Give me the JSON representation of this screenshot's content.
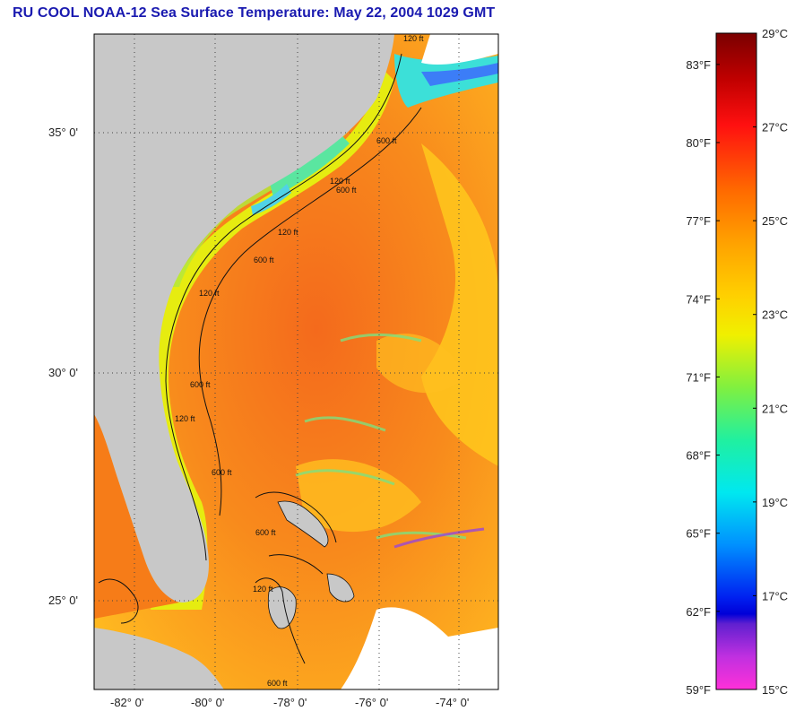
{
  "title": "RU COOL  NOAA-12  Sea Surface Temperature:  May 22, 2004 1029 GMT",
  "map": {
    "lat_labels": [
      "35° 0'",
      "30° 0'",
      "25° 0'"
    ],
    "lon_labels": [
      "-82° 0'",
      "-80° 0'",
      "-78° 0'",
      "-76° 0'",
      "-74° 0'"
    ],
    "isobath_labels": [
      "120 ft",
      "600 ft",
      "120 ft",
      "600 ft",
      "120 ft",
      "600 ft",
      "120 ft",
      "600 ft",
      "120 ft",
      "600 ft",
      "600 ft",
      "120 ft",
      "600 ft"
    ],
    "colors": {
      "land": "#c8c8c8",
      "ocean_warm": "#f27a1a",
      "ocean_mid": "#ffb21a",
      "coastal": "#d8f000"
    }
  },
  "colorbar": {
    "fahrenheit_labels": [
      "83°F",
      "80°F",
      "77°F",
      "74°F",
      "71°F",
      "68°F",
      "65°F",
      "62°F",
      "59°F"
    ],
    "celsius_labels": [
      "29°C",
      "27°C",
      "25°C",
      "23°C",
      "21°C",
      "19°C",
      "17°C",
      "15°C"
    ],
    "fahrenheit_values": [
      83,
      80,
      77,
      74,
      71,
      68,
      65,
      62,
      59
    ],
    "celsius_values": [
      29,
      27,
      25,
      23,
      21,
      19,
      17,
      15
    ],
    "range_c": [
      15,
      29
    ]
  }
}
